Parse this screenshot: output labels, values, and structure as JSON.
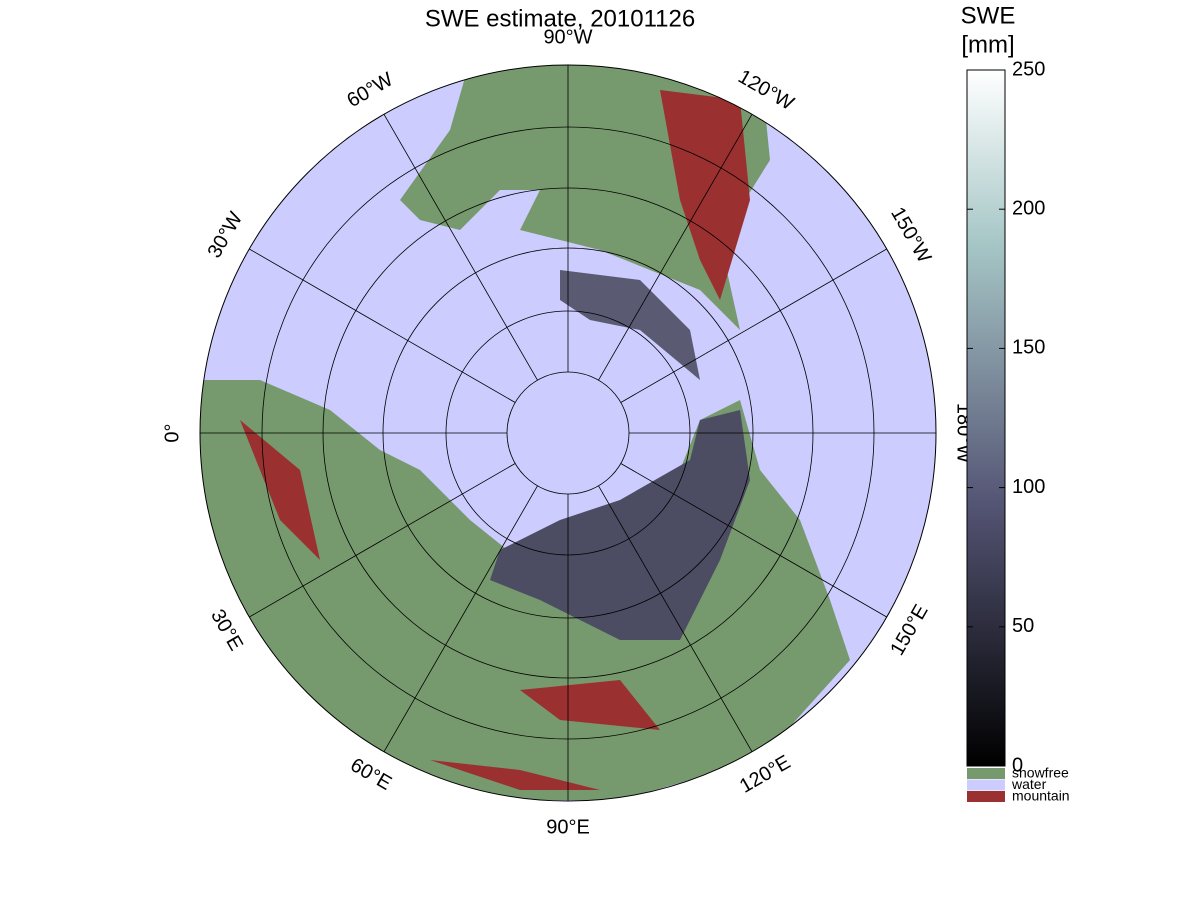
{
  "title": "SWE estimate, 20101126",
  "colorbar": {
    "label": [
      "SWE",
      "[mm]"
    ],
    "range": [
      0,
      250
    ],
    "ticks": [
      0,
      50,
      100,
      150,
      200,
      250
    ]
  },
  "legend": [
    {
      "label": "snowfree",
      "color": "#769a6e"
    },
    {
      "label": "water",
      "color": "#ccccff"
    },
    {
      "label": "mountain",
      "color": "#9b3030"
    }
  ],
  "meridian_labels": [
    "90°W",
    "120°W",
    "150°W",
    "180°W",
    "150°E",
    "120°E",
    "90°E",
    "60°E",
    "30°E",
    "0°",
    "30°W",
    "60°W"
  ]
}
